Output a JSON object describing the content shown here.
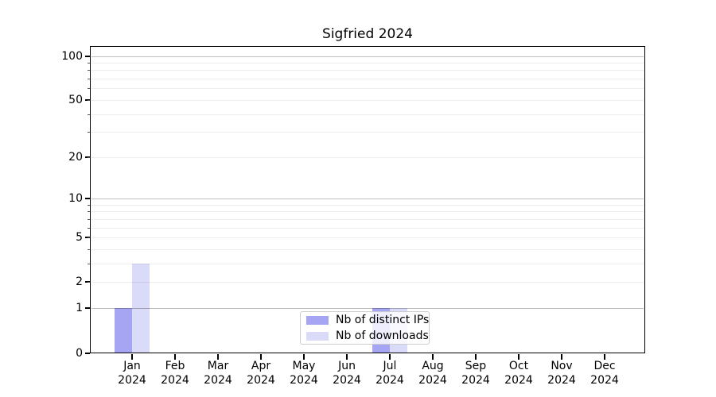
{
  "chart_data": {
    "type": "bar",
    "title": "Sigfried 2024",
    "x_year": "2024",
    "categories": [
      "Jan",
      "Feb",
      "Mar",
      "Apr",
      "May",
      "Jun",
      "Jul",
      "Aug",
      "Sep",
      "Oct",
      "Nov",
      "Dec"
    ],
    "series": [
      {
        "name": "Nb of distinct IPs",
        "color": "#a5a5f4",
        "values": [
          1,
          0,
          0,
          0,
          0,
          0,
          1,
          0,
          0,
          0,
          0,
          0
        ]
      },
      {
        "name": "Nb of downloads",
        "color": "#dadaf9",
        "values": [
          3,
          0,
          0,
          0,
          0,
          0,
          1,
          0,
          0,
          0,
          0,
          0
        ]
      }
    ],
    "y_scale": "log1p",
    "ylim": [
      0,
      116
    ],
    "y_ticks": [
      0,
      1,
      2,
      5,
      10,
      20,
      50,
      100
    ],
    "y_major_grid": [
      1,
      10,
      100
    ],
    "y_minor_grid": [
      2,
      3,
      4,
      5,
      6,
      7,
      8,
      9,
      20,
      30,
      40,
      50,
      60,
      70,
      80,
      90
    ],
    "grid": true,
    "legend_position": "lower-center",
    "colors": {
      "axis": "#000000",
      "minor_grid": "rgba(0,0,0,0.07)",
      "major_grid": "rgba(0,0,0,0.26)",
      "background": "#ffffff"
    }
  }
}
